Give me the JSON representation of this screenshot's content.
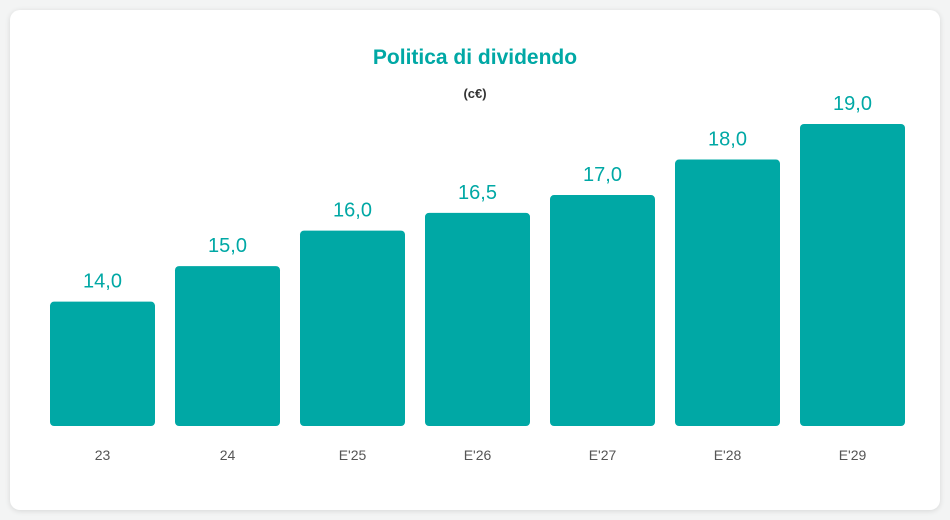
{
  "chart_data": {
    "type": "bar",
    "title": "Politica di dividendo",
    "unit": "(c€)",
    "categories": [
      "23",
      "24",
      "E'25",
      "E'26",
      "E'27",
      "E'28",
      "E'29"
    ],
    "values": [
      14.0,
      15.0,
      16.0,
      16.5,
      17.0,
      18.0,
      19.0
    ],
    "value_labels": [
      "14,0",
      "15,0",
      "16,0",
      "16,5",
      "17,0",
      "18,0",
      "19,0"
    ],
    "xlabel": "",
    "ylabel": "",
    "ylim": [
      10.5,
      19.0
    ],
    "grid": false,
    "legend": "none"
  },
  "colors": {
    "bar": "#00a8a5",
    "accent": "#00a8a5",
    "tick": "#555555"
  }
}
